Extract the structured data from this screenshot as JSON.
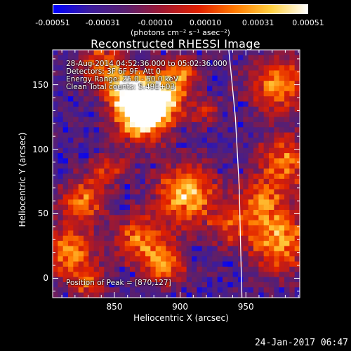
{
  "colorbar": {
    "ticks": [
      "-0.00051",
      "-0.00031",
      "-0.00010",
      "0.00010",
      "0.00031",
      "0.00051"
    ],
    "units": "(photons cm⁻² s⁻¹ asec⁻²)",
    "min": -0.00051,
    "max": 0.00051,
    "colormap": [
      "#0000ff",
      "#3b1c9e",
      "#5a1f6e",
      "#a01830",
      "#e02000",
      "#ff7a00",
      "#ffd040",
      "#ffffff"
    ]
  },
  "chart_data": {
    "type": "heatmap",
    "title": "Reconstructed RHESSI Image",
    "xlabel": "Heliocentric X (arcsec)",
    "ylabel": "Heliocentric Y (arcsec)",
    "xlim": [
      803,
      991
    ],
    "ylim": [
      -15,
      177
    ],
    "xticks": [
      850,
      900,
      950
    ],
    "yticks": [
      0,
      50,
      100,
      150
    ],
    "limb_curve": [
      [
        937,
        177
      ],
      [
        942,
        125
      ],
      [
        945,
        70
      ],
      [
        946,
        25
      ],
      [
        947,
        -15
      ]
    ],
    "annotations": [
      "28-Aug-2014 04:52:36.000 to 05:02:36.000",
      "Detectors: 3F 6F 9F, Att 0",
      "Energy Range: 25.0 - 50.0 keV",
      "Clean     Total counts: 5.49E+03"
    ],
    "peak_label": "Position of Peak = [870,127]",
    "peak": [
      870,
      127
    ],
    "grid": false
  },
  "timestamp": "24-Jan-2017 06:47"
}
